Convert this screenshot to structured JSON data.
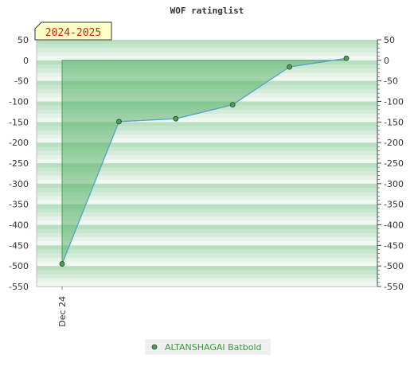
{
  "chart_data": {
    "type": "area",
    "title": "WOF ratinglist",
    "season_label": "2024-2025",
    "x_tick_labels": [
      "Dec 24"
    ],
    "ylim": [
      -550,
      50
    ],
    "y_ticks": [
      50,
      0,
      -50,
      -100,
      -150,
      -200,
      -250,
      -300,
      -350,
      -400,
      -450,
      -500,
      -550
    ],
    "series": [
      {
        "name": "ALTANSHAGAI Batbold",
        "values": [
          -495,
          -149,
          -142,
          -108,
          -16,
          5
        ]
      }
    ],
    "grid": true,
    "legend_position": "bottom"
  },
  "colors": {
    "area_fill": "#5fb46f",
    "line": "#5aa0d0",
    "marker": "#4aa055",
    "legend_text": "#3a9a3a",
    "season_label_bg": "#ffffc8",
    "season_label_text": "#cc2200"
  }
}
